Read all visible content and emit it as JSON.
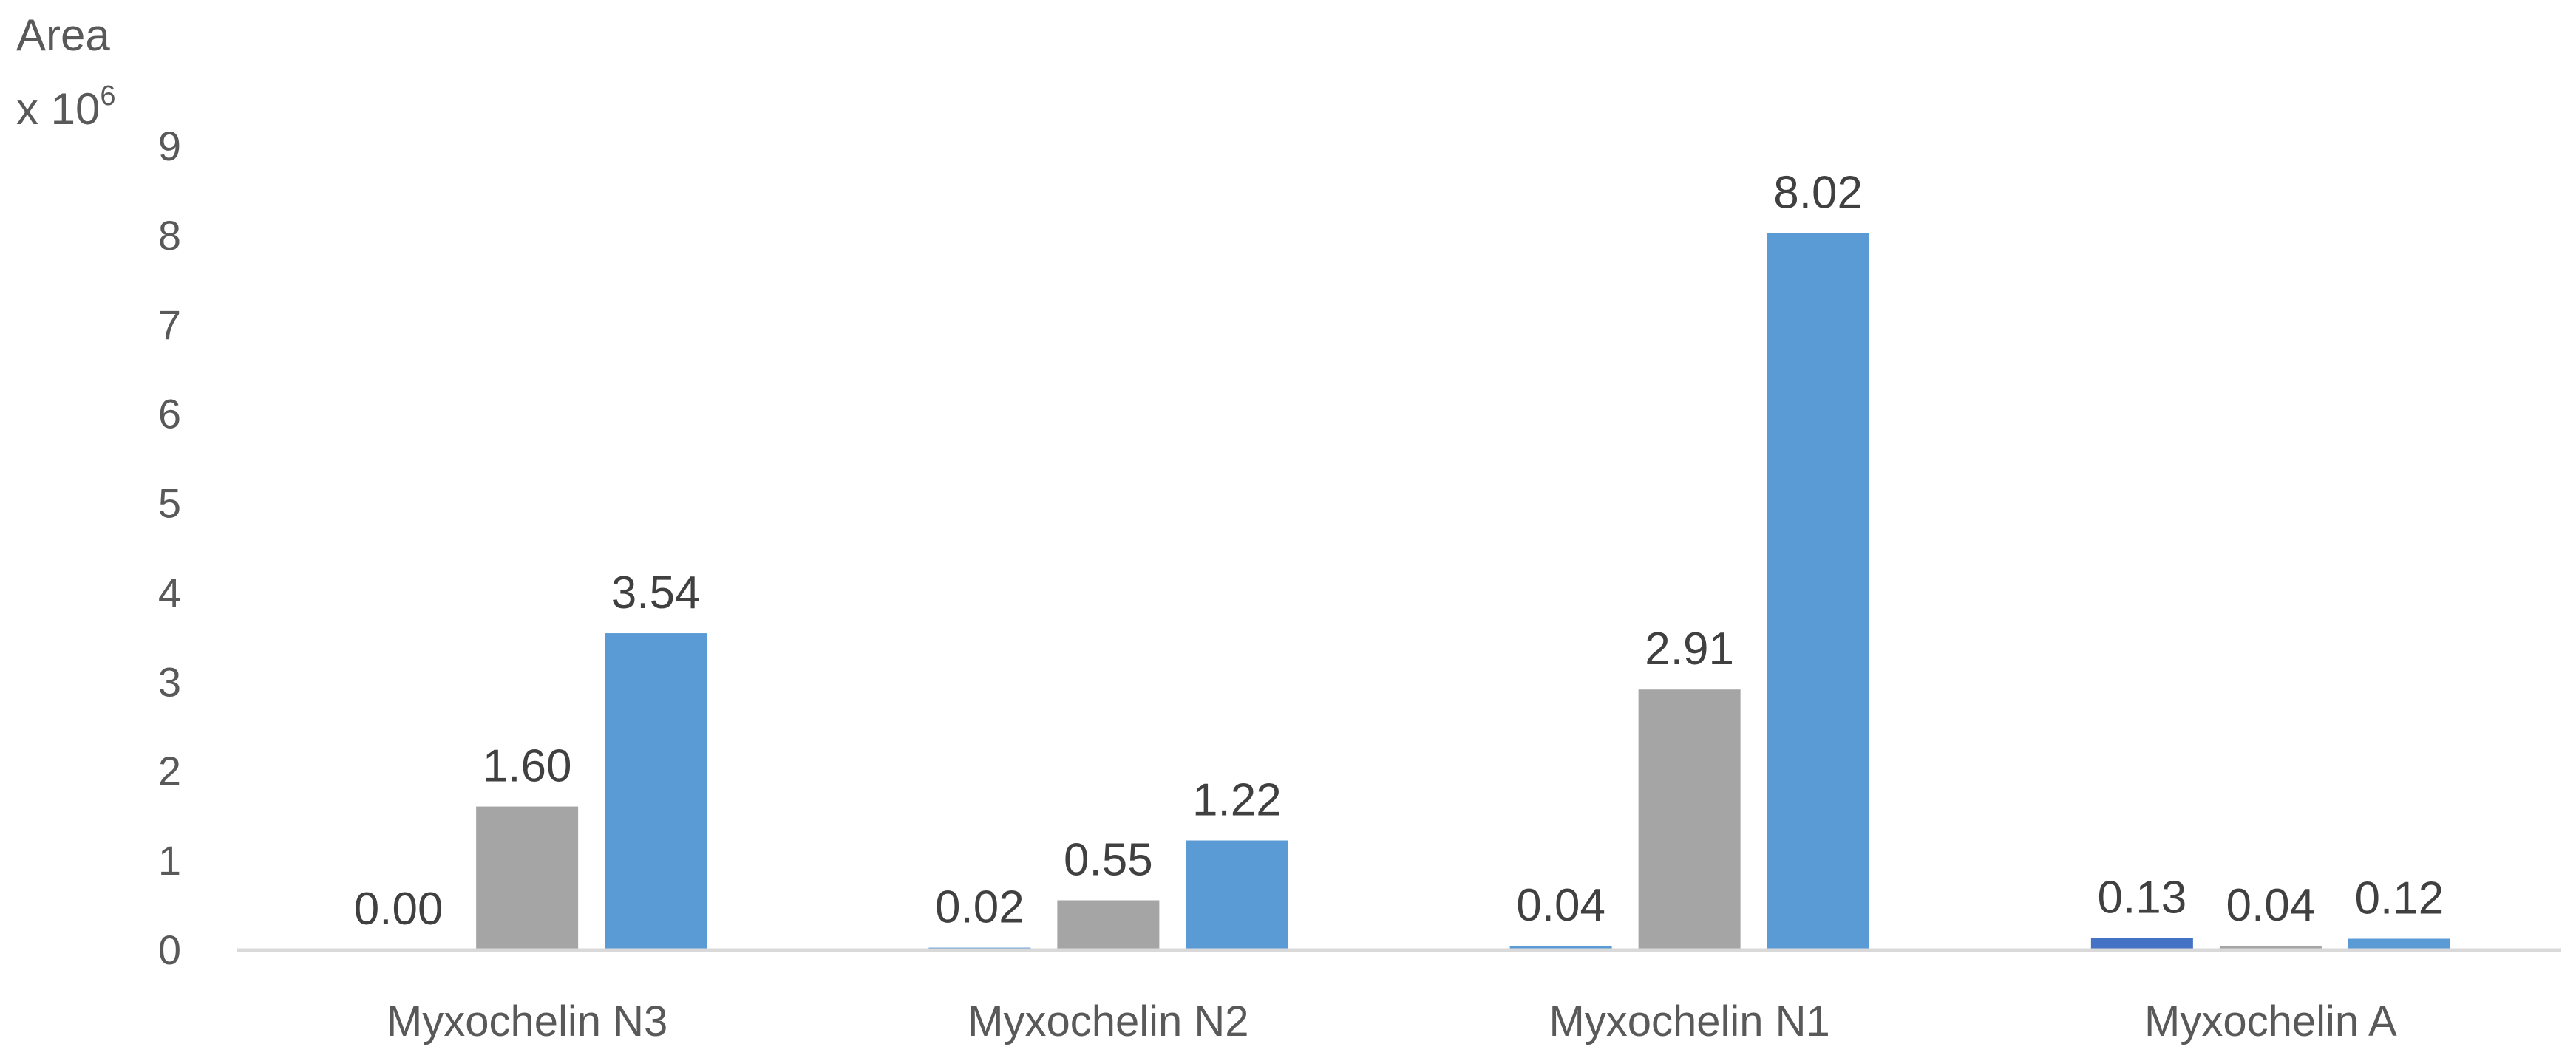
{
  "chart_data": {
    "type": "bar",
    "ylabel": "Area",
    "ylabel_scale_base": "x 10",
    "ylabel_scale_exp": "6",
    "categories": [
      "Myxochelin N3",
      "Myxochelin N2",
      "Myxochelin N1",
      "Myxochelin A"
    ],
    "series": [
      {
        "values": [
          0.0,
          0.02,
          0.04,
          0.13
        ],
        "labels": [
          "0.00",
          "0.02",
          "0.04",
          "0.13"
        ],
        "color": "#5a9bd5",
        "colors": [
          "#5a9bd5",
          "#5a9bd5",
          "#5a9bd5",
          "#4472c4"
        ]
      },
      {
        "values": [
          1.6,
          0.55,
          2.91,
          0.04
        ],
        "labels": [
          "1.60",
          "0.55",
          "2.91",
          "0.04"
        ],
        "color": "#a5a5a5"
      },
      {
        "values": [
          3.54,
          1.22,
          8.02,
          0.12
        ],
        "labels": [
          "3.54",
          "1.22",
          "8.02",
          "0.12"
        ],
        "color": "#5b9bd5"
      }
    ],
    "ylim": [
      0,
      9
    ],
    "yticks": [
      "0",
      "1",
      "2",
      "3",
      "4",
      "5",
      "6",
      "7",
      "8",
      "9"
    ],
    "grid": false,
    "axis_color": "#d9d9d9"
  }
}
